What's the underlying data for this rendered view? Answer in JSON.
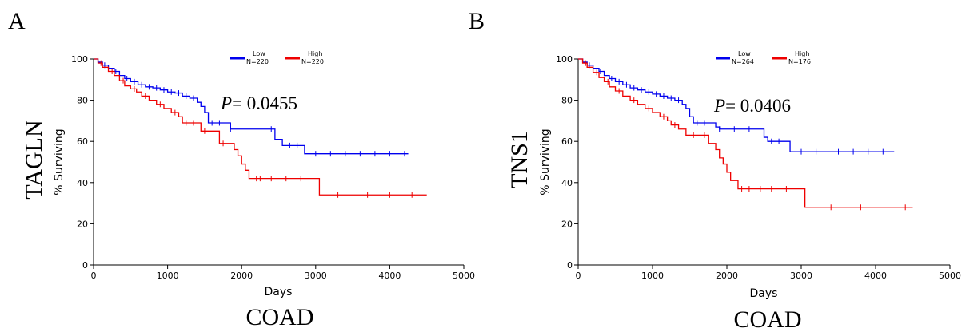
{
  "chart_data": [
    {
      "type": "line",
      "panel_label": "A",
      "gene": "TAGLN",
      "cohort": "COAD",
      "ylabel": "% Surviving",
      "xlabel": "Days",
      "xlim": [
        0,
        5000
      ],
      "ylim": [
        0,
        100
      ],
      "xticks": [
        0,
        1000,
        2000,
        3000,
        4000,
        5000
      ],
      "yticks": [
        0,
        20,
        40,
        60,
        80,
        100
      ],
      "pvalue_prefix": "P",
      "pvalue_text": "= 0.0455",
      "legend": [
        {
          "group": "Low",
          "n": "N=220",
          "color": "#0000ee"
        },
        {
          "group": "High",
          "n": "N=220",
          "color": "#ee0000"
        }
      ],
      "series": [
        {
          "group": "Low",
          "color": "#0000ee",
          "x": [
            0,
            60,
            120,
            200,
            280,
            350,
            420,
            500,
            600,
            700,
            800,
            900,
            1000,
            1100,
            1200,
            1300,
            1400,
            1450,
            1500,
            1550,
            1600,
            1800,
            1850,
            1900,
            2000,
            2300,
            2450,
            2500,
            2550,
            2800,
            2850,
            4250
          ],
          "y": [
            100,
            98.5,
            97,
            95.5,
            94,
            92,
            90.5,
            89,
            87.5,
            86.5,
            86,
            85,
            84,
            83.5,
            82,
            81,
            79,
            77,
            74,
            69,
            69,
            69,
            66,
            66,
            66,
            66,
            61,
            61,
            58,
            58,
            54,
            54
          ],
          "censors": [
            150,
            300,
            450,
            550,
            650,
            750,
            850,
            950,
            1050,
            1150,
            1250,
            1350,
            1600,
            1700,
            1850,
            2400,
            2650,
            2750,
            3000,
            3200,
            3400,
            3600,
            3800,
            4000,
            4200
          ]
        },
        {
          "group": "High",
          "color": "#ee0000",
          "x": [
            0,
            60,
            120,
            200,
            280,
            350,
            420,
            500,
            580,
            650,
            750,
            850,
            950,
            1050,
            1150,
            1200,
            1300,
            1380,
            1450,
            1600,
            1700,
            1800,
            1900,
            1950,
            2000,
            2050,
            2100,
            2200,
            3000,
            3050,
            4500
          ],
          "y": [
            100,
            98,
            96,
            94,
            92,
            89.5,
            87,
            85.5,
            84,
            82,
            80,
            78,
            76,
            74,
            72,
            69,
            69,
            69,
            65,
            65,
            59,
            59,
            56,
            53,
            49,
            46,
            42,
            42,
            42,
            34,
            34
          ],
          "censors": [
            100,
            250,
            400,
            550,
            700,
            900,
            1100,
            1250,
            1350,
            1500,
            1750,
            2200,
            2250,
            2400,
            2600,
            2800,
            3300,
            3700,
            4000,
            4300
          ]
        }
      ]
    },
    {
      "type": "line",
      "panel_label": "B",
      "gene": "TNS1",
      "cohort": "COAD",
      "ylabel": "% Surviving",
      "xlabel": "Days",
      "xlim": [
        0,
        5000
      ],
      "ylim": [
        0,
        100
      ],
      "xticks": [
        0,
        1000,
        2000,
        3000,
        4000,
        5000
      ],
      "yticks": [
        0,
        20,
        40,
        60,
        80,
        100
      ],
      "pvalue_prefix": "P",
      "pvalue_text": "= 0.0406",
      "legend": [
        {
          "group": "Low",
          "n": "N=264",
          "color": "#0000ee"
        },
        {
          "group": "High",
          "n": "N=176",
          "color": "#ee0000"
        }
      ],
      "series": [
        {
          "group": "Low",
          "color": "#0000ee",
          "x": [
            0,
            60,
            120,
            200,
            280,
            350,
            420,
            500,
            600,
            700,
            800,
            900,
            1000,
            1100,
            1200,
            1300,
            1400,
            1450,
            1500,
            1550,
            1800,
            1850,
            1900,
            2000,
            2450,
            2500,
            2550,
            2800,
            2850,
            4250
          ],
          "y": [
            100,
            98.5,
            97,
            95.5,
            94,
            92,
            90.5,
            89,
            87.5,
            86,
            85,
            84,
            83,
            82,
            81,
            80,
            78,
            76,
            72,
            69,
            69,
            67,
            66,
            66,
            66,
            62,
            60,
            60,
            55,
            55
          ],
          "censors": [
            150,
            300,
            450,
            550,
            650,
            750,
            850,
            950,
            1050,
            1150,
            1250,
            1350,
            1600,
            1700,
            1900,
            2100,
            2300,
            2600,
            2700,
            3000,
            3200,
            3500,
            3700,
            3900,
            4100
          ]
        },
        {
          "group": "High",
          "color": "#ee0000",
          "x": [
            0,
            60,
            120,
            200,
            280,
            350,
            420,
            500,
            600,
            700,
            800,
            900,
            1000,
            1100,
            1200,
            1250,
            1350,
            1450,
            1650,
            1750,
            1850,
            1900,
            1950,
            2000,
            2050,
            2150,
            3000,
            3050,
            4500
          ],
          "y": [
            100,
            98,
            96,
            93.5,
            91,
            89,
            86.5,
            84.5,
            82,
            80,
            78,
            76,
            74,
            72,
            70,
            68,
            66,
            63,
            63,
            59,
            56,
            52,
            49,
            45,
            41,
            37,
            37,
            28,
            28
          ],
          "censors": [
            100,
            250,
            400,
            550,
            750,
            950,
            1150,
            1300,
            1550,
            1700,
            2200,
            2300,
            2450,
            2600,
            2800,
            3400,
            3800,
            4400
          ]
        }
      ]
    }
  ]
}
